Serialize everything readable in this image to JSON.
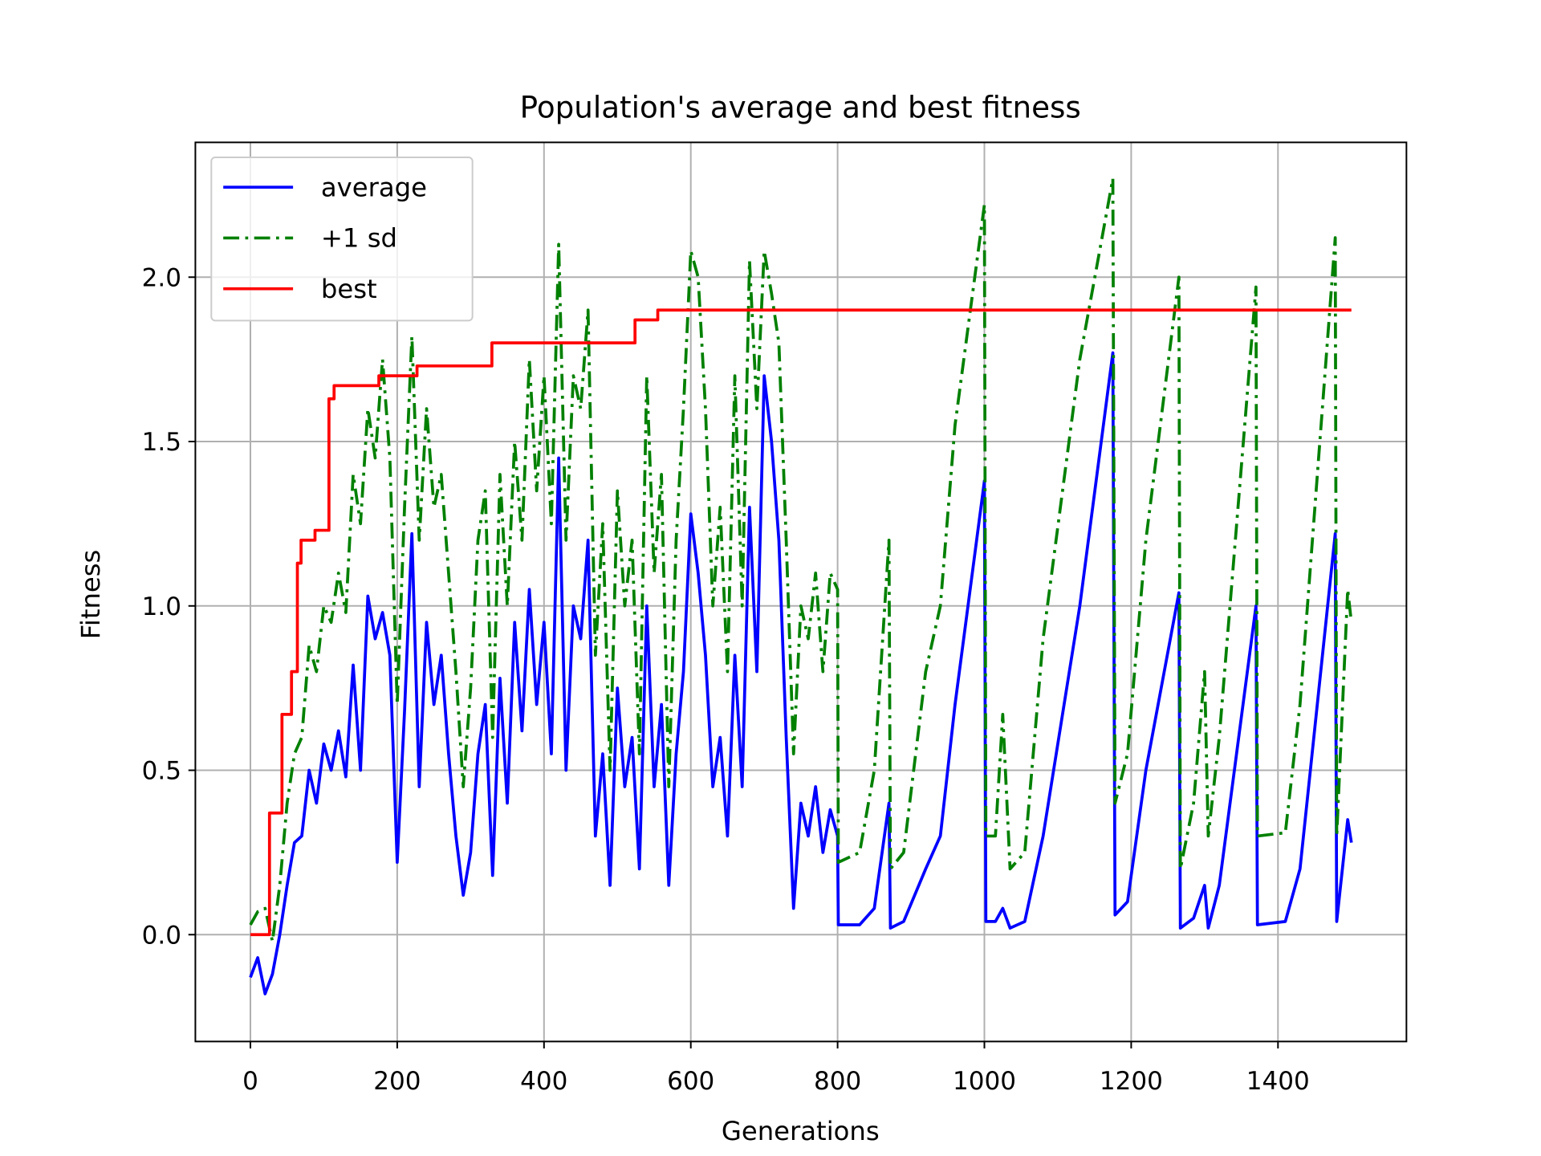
{
  "chart_data": {
    "type": "line",
    "title": "Population's average and best fitness",
    "xlabel": "Generations",
    "ylabel": "Fitness",
    "xlim": [
      -75,
      1575
    ],
    "ylim": [
      -0.325,
      2.41
    ],
    "xticks": [
      0,
      200,
      400,
      600,
      800,
      1000,
      1200,
      1400
    ],
    "yticks": [
      {
        "value": 0,
        "label": "0.0"
      },
      {
        "value": 0.5,
        "label": "0.5"
      },
      {
        "value": 1,
        "label": "1.0"
      },
      {
        "value": 1.5,
        "label": "1.5"
      },
      {
        "value": 2,
        "label": "2.0"
      }
    ],
    "grid": true,
    "legend": "upper left",
    "x": [
      0,
      10,
      20,
      30,
      40,
      50,
      60,
      70,
      80,
      90,
      100,
      110,
      120,
      130,
      140,
      150,
      160,
      170,
      180,
      190,
      200,
      210,
      220,
      230,
      240,
      250,
      260,
      270,
      280,
      290,
      300,
      310,
      320,
      330,
      340,
      350,
      360,
      370,
      380,
      390,
      400,
      410,
      420,
      430,
      440,
      450,
      460,
      470,
      480,
      490,
      500,
      510,
      520,
      530,
      540,
      550,
      560,
      570,
      580,
      590,
      600,
      610,
      620,
      630,
      640,
      650,
      660,
      670,
      680,
      690,
      700,
      710,
      720,
      730,
      740,
      750,
      760,
      770,
      780,
      790,
      800,
      801,
      830,
      850,
      870,
      872,
      890,
      920,
      940,
      960,
      1000,
      1002,
      1015,
      1025,
      1035,
      1055,
      1080,
      1130,
      1175,
      1178,
      1195,
      1220,
      1265,
      1267,
      1285,
      1300,
      1305,
      1320,
      1370,
      1372,
      1410,
      1430,
      1478,
      1480,
      1495,
      1500
    ],
    "series": [
      {
        "name": "average",
        "color": "#0000ff",
        "linestyle": "-",
        "values": [
          -0.13,
          -0.07,
          -0.18,
          -0.12,
          0.0,
          0.15,
          0.28,
          0.3,
          0.5,
          0.4,
          0.58,
          0.5,
          0.62,
          0.48,
          0.82,
          0.5,
          1.03,
          0.9,
          0.98,
          0.85,
          0.22,
          0.68,
          1.22,
          0.45,
          0.95,
          0.7,
          0.85,
          0.55,
          0.3,
          0.12,
          0.25,
          0.55,
          0.7,
          0.18,
          0.78,
          0.4,
          0.95,
          0.62,
          1.05,
          0.7,
          0.95,
          0.55,
          1.45,
          0.5,
          1.0,
          0.9,
          1.2,
          0.3,
          0.55,
          0.15,
          0.75,
          0.45,
          0.6,
          0.2,
          1.0,
          0.45,
          0.7,
          0.15,
          0.55,
          0.8,
          1.28,
          1.1,
          0.85,
          0.45,
          0.6,
          0.3,
          0.85,
          0.45,
          1.3,
          0.8,
          1.7,
          1.5,
          1.2,
          0.6,
          0.08,
          0.4,
          0.3,
          0.45,
          0.25,
          0.38,
          0.3,
          0.03,
          0.03,
          0.08,
          0.4,
          0.02,
          0.04,
          0.2,
          0.3,
          0.7,
          1.38,
          0.04,
          0.04,
          0.08,
          0.02,
          0.04,
          0.3,
          1.0,
          1.77,
          0.06,
          0.1,
          0.5,
          1.04,
          0.02,
          0.05,
          0.15,
          0.02,
          0.15,
          1.0,
          0.03,
          0.04,
          0.2,
          1.22,
          0.04,
          0.35,
          0.28
        ]
      },
      {
        "name": "+1 sd",
        "color": "#008000",
        "linestyle": "-.",
        "values": [
          0.03,
          0.07,
          0.08,
          -0.02,
          0.15,
          0.4,
          0.55,
          0.6,
          0.88,
          0.8,
          1.0,
          0.95,
          1.1,
          0.98,
          1.4,
          1.25,
          1.6,
          1.45,
          1.75,
          1.45,
          0.7,
          1.3,
          1.82,
          1.2,
          1.6,
          1.3,
          1.4,
          1.1,
          0.8,
          0.45,
          0.75,
          1.2,
          1.35,
          0.6,
          1.4,
          1.0,
          1.5,
          1.2,
          1.75,
          1.35,
          1.7,
          1.25,
          2.1,
          1.2,
          1.7,
          1.6,
          1.9,
          0.85,
          1.25,
          0.5,
          1.35,
          1.0,
          1.2,
          0.55,
          1.7,
          1.1,
          1.4,
          0.45,
          1.2,
          1.6,
          2.08,
          2.0,
          1.6,
          1.0,
          1.3,
          0.8,
          1.7,
          1.0,
          2.05,
          1.6,
          2.08,
          1.95,
          1.8,
          1.2,
          0.55,
          1.0,
          0.9,
          1.1,
          0.8,
          1.1,
          1.05,
          0.22,
          0.25,
          0.5,
          1.2,
          0.2,
          0.25,
          0.8,
          1.0,
          1.55,
          2.22,
          0.3,
          0.3,
          0.67,
          0.2,
          0.25,
          0.9,
          1.75,
          2.3,
          0.4,
          0.55,
          1.2,
          2.0,
          0.2,
          0.4,
          0.8,
          0.3,
          0.6,
          1.97,
          0.3,
          0.31,
          0.7,
          2.12,
          0.3,
          1.05,
          0.95
        ]
      },
      {
        "name": "best",
        "color": "#ff0000",
        "linestyle": "-",
        "x": [
          0,
          26,
          26,
          43,
          43,
          56,
          56,
          64,
          64,
          69,
          69,
          88,
          88,
          107,
          107,
          114,
          114,
          175,
          175,
          227,
          227,
          329,
          329,
          524,
          524,
          555,
          555,
          1500
        ],
        "values": [
          0,
          0,
          0.37,
          0.37,
          0.67,
          0.67,
          0.8,
          0.8,
          1.13,
          1.13,
          1.2,
          1.2,
          1.23,
          1.23,
          1.63,
          1.63,
          1.67,
          1.67,
          1.7,
          1.7,
          1.73,
          1.73,
          1.8,
          1.8,
          1.87,
          1.87,
          1.9,
          1.9
        ]
      }
    ]
  }
}
